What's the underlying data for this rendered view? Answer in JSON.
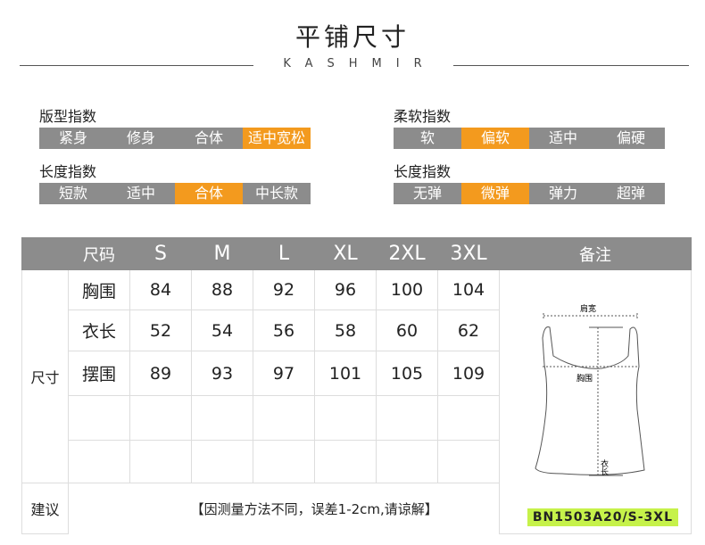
{
  "title": "平铺尺寸",
  "brand": "KASHMIR",
  "indices": [
    {
      "label": "版型指数",
      "options": [
        "紧身",
        "修身",
        "合体",
        "适中宽松"
      ],
      "selected": 3
    },
    {
      "label": "长度指数",
      "options": [
        "短款",
        "适中",
        "合体",
        "中长款"
      ],
      "selected": 2
    },
    {
      "label": "柔软指数",
      "options": [
        "软",
        "偏软",
        "适中",
        "偏硬"
      ],
      "selected": 1
    },
    {
      "label": "长度指数",
      "options": [
        "无弹",
        "微弹",
        "弹力",
        "超弹"
      ],
      "selected": 1
    }
  ],
  "colors": {
    "accent": "#f39a1e",
    "bar": "#8c8c8c",
    "code_bg": "#c6f24a"
  },
  "table": {
    "size_header": "尺码",
    "sizes": [
      "S",
      "M",
      "L",
      "XL",
      "2XL",
      "3XL"
    ],
    "note_header": "备注",
    "group_label": "尺寸",
    "rows": [
      {
        "label": "胸围",
        "values": [
          "84",
          "88",
          "92",
          "96",
          "100",
          "104"
        ]
      },
      {
        "label": "衣长",
        "values": [
          "52",
          "54",
          "56",
          "58",
          "60",
          "62"
        ]
      },
      {
        "label": "摆围",
        "values": [
          "89",
          "93",
          "97",
          "101",
          "105",
          "109"
        ]
      }
    ],
    "advice_label": "建议",
    "remark": "【因测量方法不同，误差1-2cm,请谅解】",
    "diagram": {
      "shoulder": "肩宽",
      "chest": "胸围",
      "length": "衣长"
    },
    "code": "BN1503A20/S-3XL"
  }
}
